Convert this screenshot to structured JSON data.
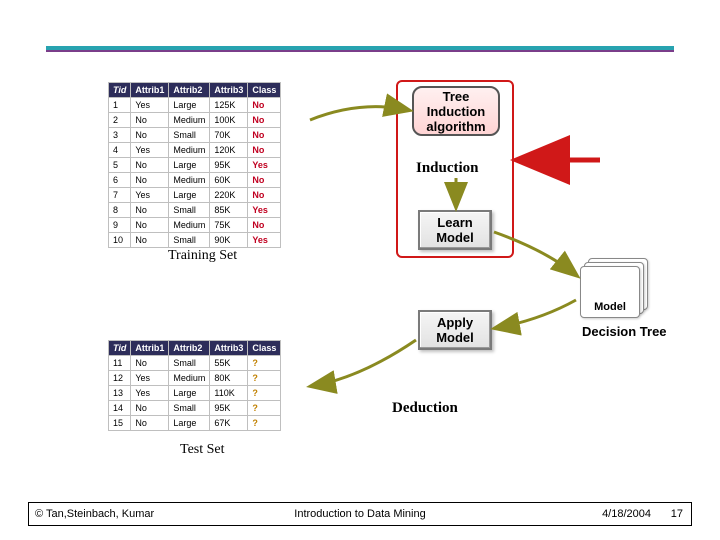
{
  "colors": {
    "rule_outer": "#27a3b0",
    "rule_inner": "#7a3d8a",
    "header_bg": "#2d2d5a",
    "header_fg": "#ffffff",
    "cell_border": "#bfbfbf",
    "class_fg": "#c00020",
    "unknown_fg": "#c08000",
    "frame_red": "#d01818",
    "arrow_olive": "#8a8a20",
    "arrow_red": "#d01818"
  },
  "training_table": {
    "columns": [
      "Tid",
      "Attrib1",
      "Attrib2",
      "Attrib3",
      "Class"
    ],
    "rows": [
      [
        "1",
        "Yes",
        "Large",
        "125K",
        "No"
      ],
      [
        "2",
        "No",
        "Medium",
        "100K",
        "No"
      ],
      [
        "3",
        "No",
        "Small",
        "70K",
        "No"
      ],
      [
        "4",
        "Yes",
        "Medium",
        "120K",
        "No"
      ],
      [
        "5",
        "No",
        "Large",
        "95K",
        "Yes"
      ],
      [
        "6",
        "No",
        "Medium",
        "60K",
        "No"
      ],
      [
        "7",
        "Yes",
        "Large",
        "220K",
        "No"
      ],
      [
        "8",
        "No",
        "Small",
        "85K",
        "Yes"
      ],
      [
        "9",
        "No",
        "Medium",
        "75K",
        "No"
      ],
      [
        "10",
        "No",
        "Small",
        "90K",
        "Yes"
      ]
    ],
    "label": "Training Set"
  },
  "test_table": {
    "columns": [
      "Tid",
      "Attrib1",
      "Attrib2",
      "Attrib3",
      "Class"
    ],
    "rows": [
      [
        "11",
        "No",
        "Small",
        "55K",
        "?"
      ],
      [
        "12",
        "Yes",
        "Medium",
        "80K",
        "?"
      ],
      [
        "13",
        "Yes",
        "Large",
        "110K",
        "?"
      ],
      [
        "14",
        "No",
        "Small",
        "95K",
        "?"
      ],
      [
        "15",
        "No",
        "Large",
        "67K",
        "?"
      ]
    ],
    "label": "Test Set"
  },
  "boxes": {
    "algorithm": "Tree\nInduction\nalgorithm",
    "learn": "Learn\nModel",
    "apply": "Apply\nModel",
    "model": "Model"
  },
  "stages": {
    "induction": "Induction",
    "deduction": "Deduction"
  },
  "annotation": "Decision\nTree",
  "footer": {
    "left": "© Tan,Steinbach, Kumar",
    "center": "Introduction to Data Mining",
    "right": "4/18/2004",
    "page": "17"
  }
}
